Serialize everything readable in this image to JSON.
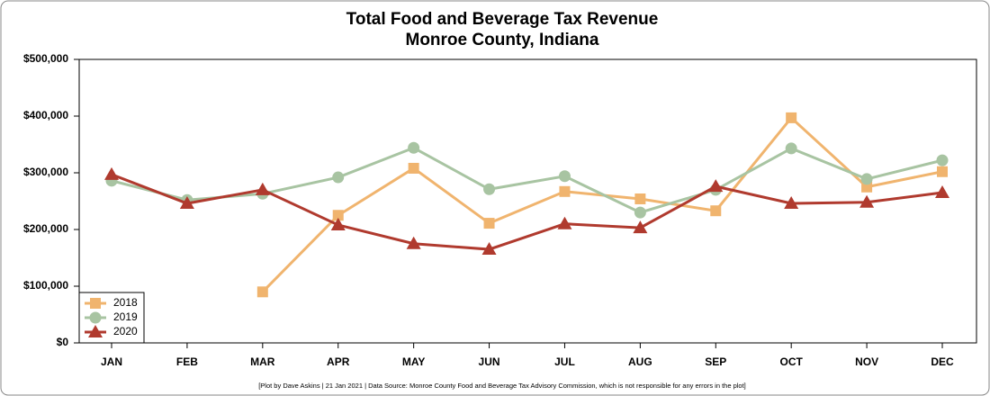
{
  "chart_data": {
    "type": "line",
    "title": "Total Food and Beverage Tax Revenue",
    "subtitle": "Monroe County, Indiana",
    "footnote": "[Plot by Dave Askins | 21 Jan 2021 | Data Source: Monroe County Food and Beverage Tax Advisory Commission, which is not responsible for any errors in the plot]",
    "categories": [
      "JAN",
      "FEB",
      "MAR",
      "APR",
      "MAY",
      "JUN",
      "JUL",
      "AUG",
      "SEP",
      "OCT",
      "NOV",
      "DEC"
    ],
    "series": [
      {
        "name": "2018",
        "color": "#f0b46e",
        "marker": "square",
        "values": [
          null,
          null,
          90000,
          225000,
          308000,
          211000,
          267000,
          254000,
          233000,
          397000,
          275000,
          302000
        ]
      },
      {
        "name": "2019",
        "color": "#a8c4a2",
        "marker": "circle",
        "values": [
          286000,
          252000,
          263000,
          292000,
          344000,
          271000,
          294000,
          230000,
          270000,
          343000,
          289000,
          322000
        ]
      },
      {
        "name": "2020",
        "color": "#b03a2e",
        "marker": "triangle",
        "values": [
          297000,
          246000,
          270000,
          208000,
          175000,
          165000,
          210000,
          203000,
          276000,
          246000,
          248000,
          265000
        ]
      }
    ],
    "ylim": [
      0,
      500000
    ],
    "yticks": [
      {
        "value": 0,
        "label": "$0"
      },
      {
        "value": 100000,
        "label": "$100,000"
      },
      {
        "value": 200000,
        "label": "$200,000"
      },
      {
        "value": 300000,
        "label": "$300,000"
      },
      {
        "value": 400000,
        "label": "$400,000"
      },
      {
        "value": 500000,
        "label": "$500,000"
      }
    ],
    "grid": false,
    "legend": "bottom-left"
  }
}
